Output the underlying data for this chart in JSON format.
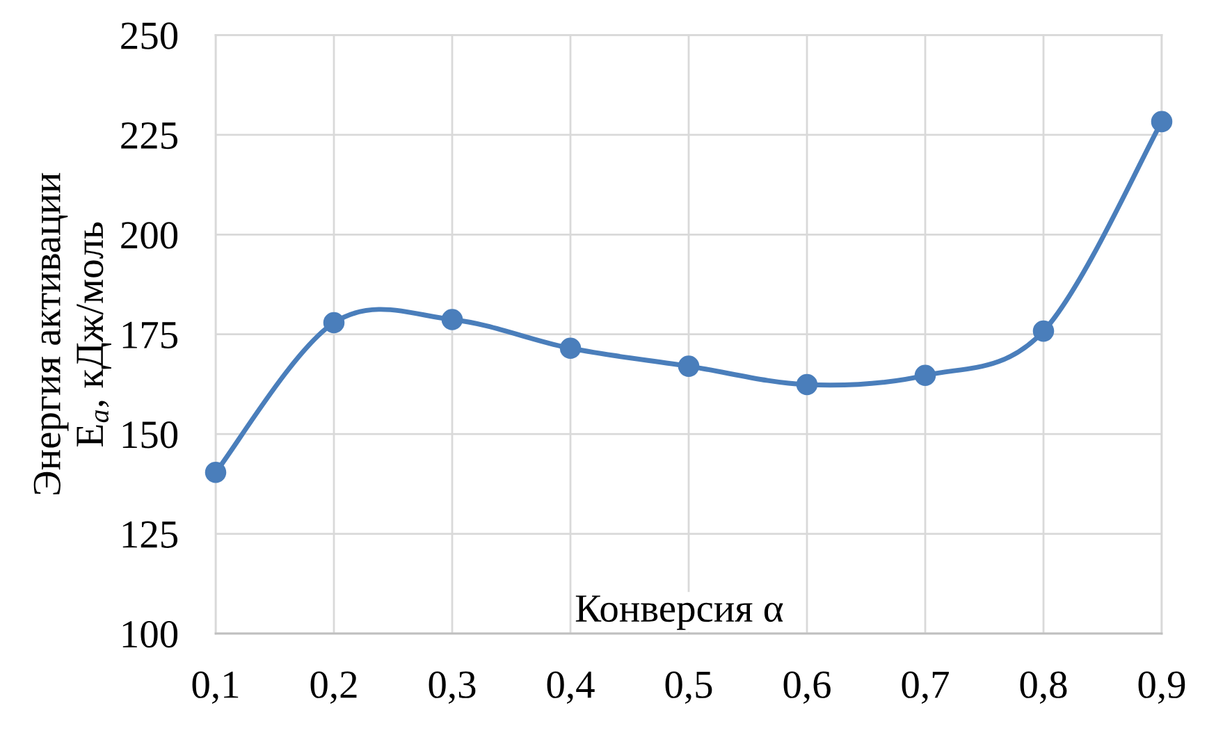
{
  "chart_data": {
    "type": "line",
    "xlabel": "Конверсия α",
    "ylabel": "Энергия активации\nE$_{a}$, кДж/моль",
    "categories": [
      "0,1",
      "0,2",
      "0,3",
      "0,4",
      "0,5",
      "0,6",
      "0,7",
      "0,8",
      "0,9"
    ],
    "series": [
      {
        "color": "#4a7ebb",
        "values": [
          140.4,
          177.9,
          178.7,
          171.5,
          167.0,
          162.4,
          164.7,
          175.8,
          228.3
        ]
      }
    ],
    "ylim": [
      100,
      250
    ],
    "yticks": [
      100,
      125,
      150,
      175,
      200,
      225,
      250
    ],
    "grid": true,
    "marker": "circle",
    "line_style": "solid"
  }
}
